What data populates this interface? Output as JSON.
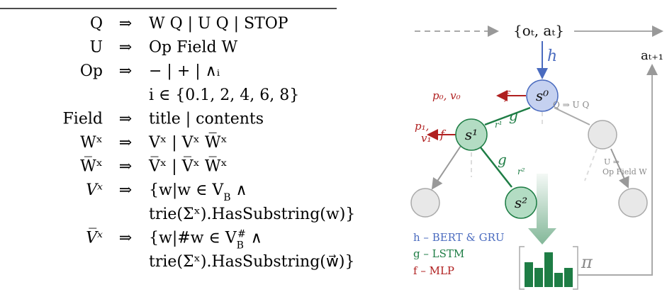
{
  "grammar": {
    "rows": [
      {
        "lhs": "Q",
        "arrow": "⇒",
        "rhs": [
          "W Q | U Q | STOP"
        ]
      },
      {
        "lhs": "U",
        "arrow": "⇒",
        "rhs": [
          "Op Field W"
        ]
      },
      {
        "lhs": "Op",
        "arrow": "⇒",
        "rhs": [
          "− | + | ∧ᵢ",
          "i ∈ {0.1, 2, 4, 6, 8}"
        ]
      },
      {
        "lhs": "Field",
        "arrow": "⇒",
        "rhs": [
          "title | contents"
        ]
      },
      {
        "lhs": "Wˣ",
        "arrow": "⇒",
        "rhs": [
          "Vˣ | Vˣ W̅ˣ"
        ]
      },
      {
        "lhs": "W̅ˣ",
        "arrow": "⇒",
        "rhs": [
          "V̅ˣ | V̅ˣ W̅ˣ"
        ]
      },
      {
        "lhs": "Vˣ",
        "italic": true,
        "arrow": "⇒",
        "rhs": [
          [
            "{w|w ∈ V",
            {
              "text": "B",
              "shift": "sub"
            },
            " ∧"
          ],
          "trie(Σˣ).HasSubstring(w)}"
        ]
      },
      {
        "lhs": "V̅ˣ",
        "italic": true,
        "arrow": "⇒",
        "rhs": [
          [
            "{w|#w ∈ V",
            {
              "text": "B",
              "shift": "sub"
            },
            {
              "text": "#",
              "shift": "super"
            },
            " ∧"
          ],
          "trie(Σˣ).HasSubstring(w⃗)}"
        ]
      }
    ]
  },
  "diagram": {
    "observation": "{oₜ, aₜ}",
    "next_action": "aₜ₊₁",
    "h": "h",
    "f0": "f",
    "out0": "p₀, v₀",
    "s0": "s⁰",
    "g1": "g",
    "r1": "r¹",
    "s1": "s¹",
    "f1": "f",
    "out1a": "p₁,",
    "out1b": "v₁",
    "rule1": "Q ⇒ U Q",
    "g2": "g",
    "r2": "r²",
    "s2": "s²",
    "rule2a": "U ⇒",
    "rule2b": "Op Field W",
    "pi": "π",
    "legend": [
      "h – BERT & GRU",
      "g – LSTM",
      "f – MLP"
    ]
  }
}
